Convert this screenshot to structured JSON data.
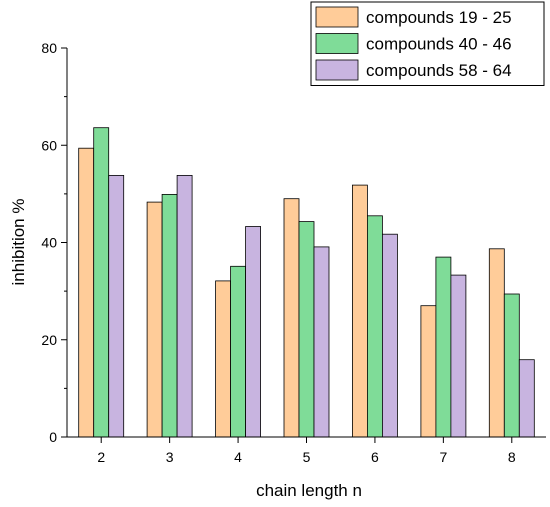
{
  "chart_data": {
    "type": "bar",
    "xlabel": "chain length n",
    "ylabel": "inhibition %",
    "categories": [
      "2",
      "3",
      "4",
      "5",
      "6",
      "7",
      "8"
    ],
    "ylim": [
      0,
      80
    ],
    "yticks": [
      0,
      20,
      40,
      60,
      80
    ],
    "grid": false,
    "legend_position": "top-right",
    "series": [
      {
        "name": "compounds 19 - 25",
        "color": "#FFCC99",
        "values": [
          59.4,
          48.3,
          32.1,
          49.0,
          51.8,
          27.0,
          38.7
        ]
      },
      {
        "name": "compounds 40 - 46",
        "color": "#7FDC98",
        "values": [
          63.6,
          49.9,
          35.1,
          44.3,
          45.5,
          37.0,
          29.4
        ]
      },
      {
        "name": "compounds 58 - 64",
        "color": "#C8B4E0",
        "values": [
          53.8,
          53.8,
          43.3,
          39.1,
          41.7,
          33.3,
          15.9
        ]
      }
    ]
  }
}
